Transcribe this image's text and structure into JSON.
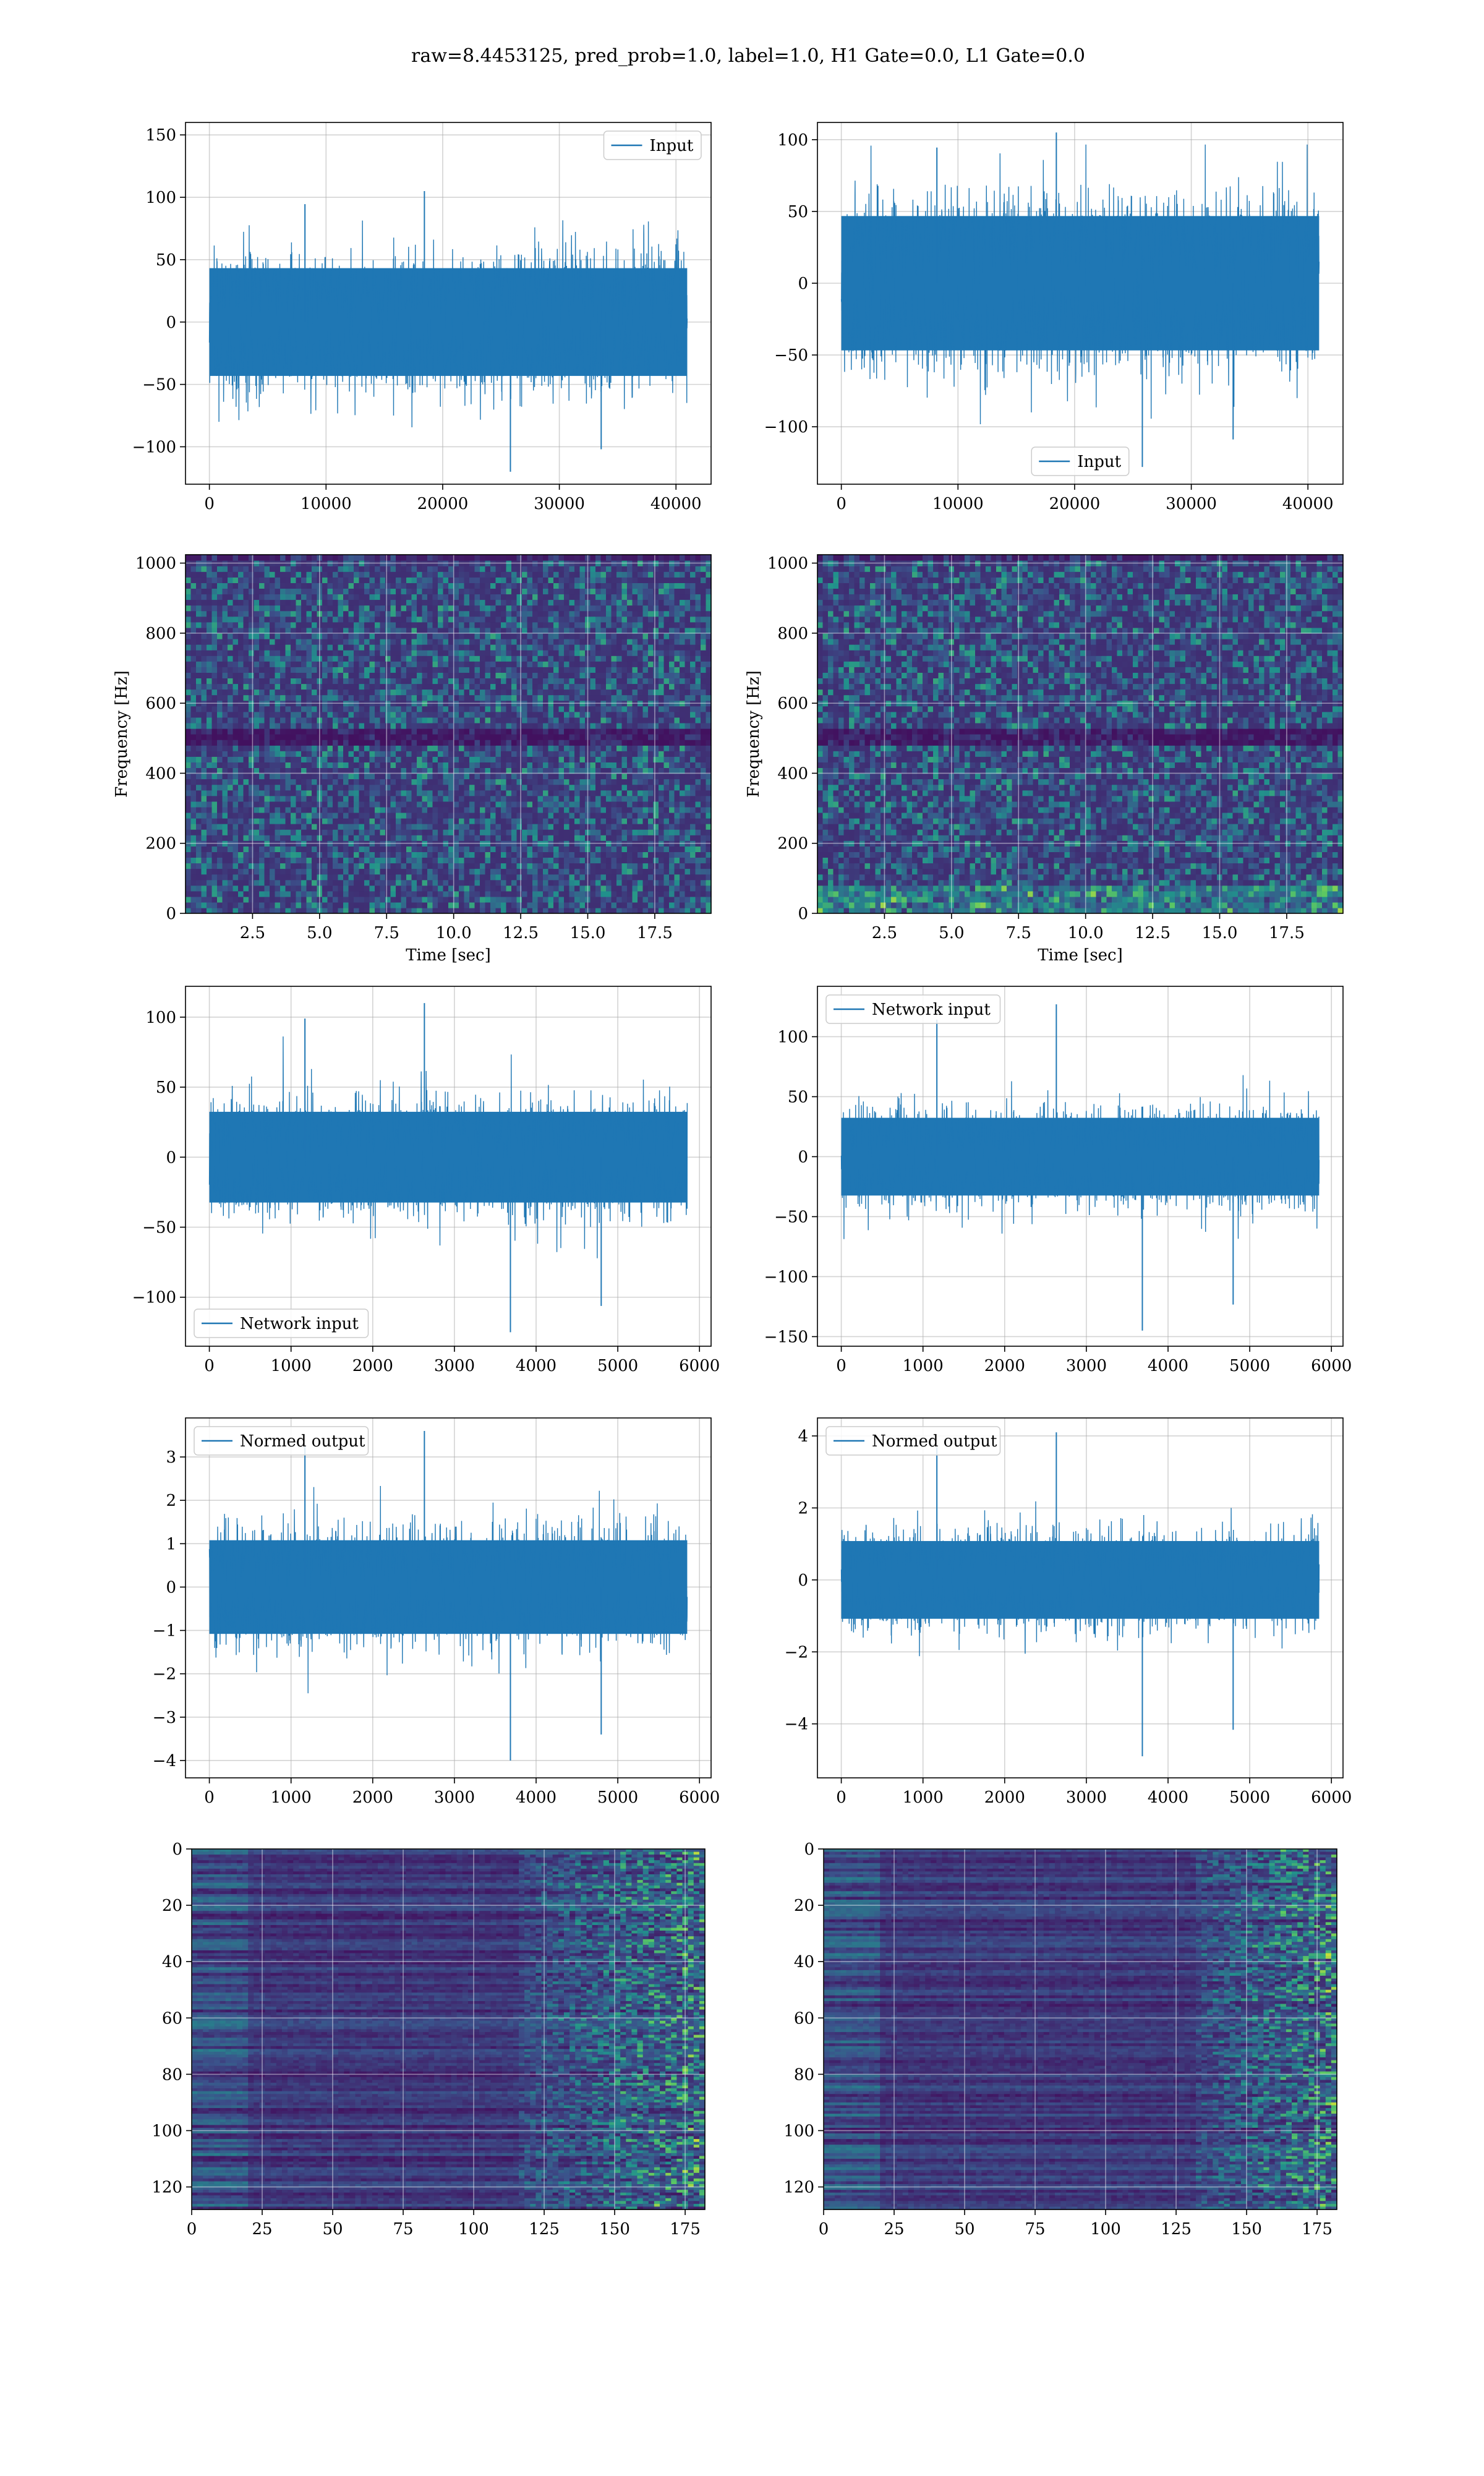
{
  "figure": {
    "suptitle": "raw=8.4453125, pred_prob=1.0, label=1.0, H1 Gate=0.0, L1 Gate=0.0"
  },
  "colors": {
    "line": "#1f77b4",
    "grid": "#b0b0b0",
    "viridis_low": "#440154",
    "viridis_mid": "#3b528b",
    "viridis_teal": "#21918c",
    "viridis_green": "#5ec962",
    "viridis_high": "#fde725"
  },
  "chart_data": [
    {
      "id": "input-h1",
      "type": "line",
      "title": "",
      "xlabel": "",
      "ylabel": "",
      "x_range": [
        0,
        40960
      ],
      "xlim": [
        -2048,
        43008
      ],
      "ylim": [
        -130,
        160
      ],
      "xticks": [
        0,
        10000,
        20000,
        30000,
        40000
      ],
      "yticks": [
        -100,
        -50,
        0,
        50,
        100,
        150
      ],
      "grid": true,
      "legend": {
        "placement": "upper right",
        "entries": [
          "Input"
        ]
      },
      "series": [
        {
          "name": "Input",
          "envelope": {
            "typical_amplitude": 60,
            "peak_max": 105,
            "peak_min": -120
          }
        }
      ]
    },
    {
      "id": "input-l1",
      "type": "line",
      "title": "",
      "xlabel": "",
      "ylabel": "",
      "x_range": [
        0,
        40960
      ],
      "xlim": [
        -2048,
        43008
      ],
      "ylim": [
        -140,
        112
      ],
      "xticks": [
        0,
        10000,
        20000,
        30000,
        40000
      ],
      "yticks": [
        -100,
        -50,
        0,
        50,
        100
      ],
      "grid": true,
      "legend": {
        "placement": "lower center",
        "entries": [
          "Input"
        ]
      },
      "series": [
        {
          "name": "Input",
          "envelope": {
            "typical_amplitude": 65,
            "peak_max": 105,
            "peak_min": -128
          }
        }
      ]
    },
    {
      "id": "spectrogram-h1",
      "type": "heatmap",
      "title": "",
      "xlabel": "Time [sec]",
      "ylabel": "Frequency [Hz]",
      "xlim": [
        0,
        19.6
      ],
      "ylim": [
        0,
        1024
      ],
      "xticks": [
        2.5,
        5.0,
        7.5,
        10.0,
        12.5,
        15.0,
        17.5
      ],
      "xtick_labels": [
        "2.5",
        "5.0",
        "7.5",
        "10.0",
        "12.5",
        "15.0",
        "17.5"
      ],
      "yticks": [
        0,
        200,
        400,
        600,
        800,
        1000
      ],
      "grid": true,
      "colormap": "viridis",
      "features": {
        "dark_band_hz": 490,
        "hot_spots": 3
      }
    },
    {
      "id": "spectrogram-l1",
      "type": "heatmap",
      "title": "",
      "xlabel": "Time [sec]",
      "ylabel": "Frequency [Hz]",
      "xlim": [
        0,
        19.6
      ],
      "ylim": [
        0,
        1024
      ],
      "xticks": [
        2.5,
        5.0,
        7.5,
        10.0,
        12.5,
        15.0,
        17.5
      ],
      "xtick_labels": [
        "2.5",
        "5.0",
        "7.5",
        "10.0",
        "12.5",
        "15.0",
        "17.5"
      ],
      "yticks": [
        0,
        200,
        400,
        600,
        800,
        1000
      ],
      "grid": true,
      "colormap": "viridis",
      "features": {
        "dark_band_hz": 500,
        "low_freq_bright": true
      }
    },
    {
      "id": "network-input-h1",
      "type": "line",
      "title": "",
      "xlabel": "",
      "ylabel": "",
      "x_range": [
        0,
        5850
      ],
      "xlim": [
        -292,
        6142
      ],
      "ylim": [
        -135,
        122
      ],
      "xticks": [
        0,
        1000,
        2000,
        3000,
        4000,
        5000,
        6000
      ],
      "yticks": [
        -100,
        -50,
        0,
        50,
        100
      ],
      "grid": true,
      "legend": {
        "placement": "lower left",
        "entries": [
          "Network input"
        ]
      },
      "series": [
        {
          "name": "Network input",
          "envelope": {
            "typical_amplitude": 45,
            "peak_max": 110,
            "peak_min": -125
          }
        }
      ]
    },
    {
      "id": "network-input-l1",
      "type": "line",
      "title": "",
      "xlabel": "",
      "ylabel": "",
      "x_range": [
        0,
        5850
      ],
      "xlim": [
        -292,
        6142
      ],
      "ylim": [
        -158,
        142
      ],
      "xticks": [
        0,
        1000,
        2000,
        3000,
        4000,
        5000,
        6000
      ],
      "yticks": [
        -150,
        -100,
        -50,
        0,
        50,
        100
      ],
      "grid": true,
      "legend": {
        "placement": "upper left",
        "entries": [
          "Network input"
        ]
      },
      "series": [
        {
          "name": "Network input",
          "envelope": {
            "typical_amplitude": 45,
            "peak_max": 127,
            "peak_min": -145
          }
        }
      ]
    },
    {
      "id": "normed-output-h1",
      "type": "line",
      "title": "",
      "xlabel": "",
      "ylabel": "",
      "x_range": [
        0,
        5850
      ],
      "xlim": [
        -292,
        6142
      ],
      "ylim": [
        -4.4,
        3.9
      ],
      "xticks": [
        0,
        1000,
        2000,
        3000,
        4000,
        5000,
        6000
      ],
      "yticks": [
        -4,
        -3,
        -2,
        -1,
        0,
        1,
        2,
        3
      ],
      "grid": true,
      "legend": {
        "placement": "upper left",
        "entries": [
          "Normed output"
        ]
      },
      "series": [
        {
          "name": "Normed output",
          "envelope": {
            "typical_amplitude": 1.5,
            "peak_max": 3.6,
            "peak_min": -4.0
          }
        }
      ]
    },
    {
      "id": "normed-output-l1",
      "type": "line",
      "title": "",
      "xlabel": "",
      "ylabel": "",
      "x_range": [
        0,
        5850
      ],
      "xlim": [
        -292,
        6142
      ],
      "ylim": [
        -5.5,
        4.5
      ],
      "xticks": [
        0,
        1000,
        2000,
        3000,
        4000,
        5000,
        6000
      ],
      "yticks": [
        -4,
        -2,
        0,
        2,
        4
      ],
      "grid": true,
      "legend": {
        "placement": "upper left",
        "entries": [
          "Normed output"
        ]
      },
      "series": [
        {
          "name": "Normed output",
          "envelope": {
            "typical_amplitude": 1.5,
            "peak_max": 4.1,
            "peak_min": -4.9
          }
        }
      ]
    },
    {
      "id": "feature-map-h1",
      "type": "heatmap",
      "title": "",
      "xlabel": "",
      "ylabel": "",
      "xlim": [
        0,
        182
      ],
      "ylim": [
        128,
        0
      ],
      "rows": 128,
      "cols": 182,
      "xticks": [
        0,
        25,
        50,
        75,
        100,
        125,
        150,
        175
      ],
      "yticks": [
        0,
        20,
        40,
        60,
        80,
        100,
        120
      ],
      "grid": true,
      "colormap": "viridis",
      "features": {
        "bright_region_start_col": 115
      }
    },
    {
      "id": "feature-map-l1",
      "type": "heatmap",
      "title": "",
      "xlabel": "",
      "ylabel": "",
      "xlim": [
        0,
        182
      ],
      "ylim": [
        128,
        0
      ],
      "rows": 128,
      "cols": 182,
      "xticks": [
        0,
        25,
        50,
        75,
        100,
        125,
        150,
        175
      ],
      "yticks": [
        0,
        20,
        40,
        60,
        80,
        100,
        120
      ],
      "grid": true,
      "colormap": "viridis",
      "features": {
        "bright_region_start_col": 130
      }
    }
  ]
}
